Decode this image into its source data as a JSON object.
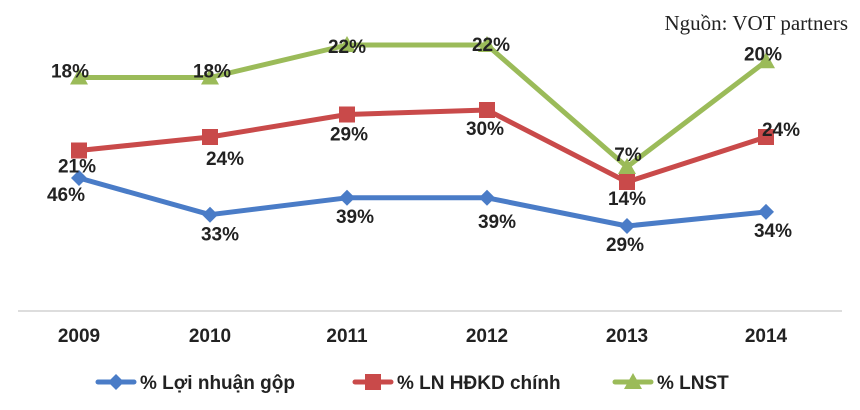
{
  "source_note": "Nguồn: VOT partners",
  "chart_data": {
    "type": "line",
    "categories": [
      "2009",
      "2010",
      "2011",
      "2012",
      "2013",
      "2014"
    ],
    "series": [
      {
        "name": "% Lợi nhuận gộp",
        "values": [
          46,
          33,
          39,
          39,
          29,
          34
        ],
        "labels": [
          "46%",
          "33%",
          "39%",
          "39%",
          "29%",
          "34%"
        ],
        "color": "#4a7cc7",
        "marker": "diamond"
      },
      {
        "name": "% LN HĐKD chính",
        "values": [
          21,
          24,
          29,
          30,
          14,
          24
        ],
        "labels": [
          "21%",
          "24%",
          "29%",
          "30%",
          "14%",
          "24%"
        ],
        "color": "#c94a4a",
        "marker": "square"
      },
      {
        "name": "% LNST",
        "values": [
          18,
          18,
          22,
          22,
          7,
          20
        ],
        "labels": [
          "18%",
          "18%",
          "22%",
          "22%",
          "7%",
          "20%"
        ],
        "color": "#9bbb59",
        "marker": "triangle"
      }
    ],
    "legend_position": "bottom",
    "grid": false
  }
}
